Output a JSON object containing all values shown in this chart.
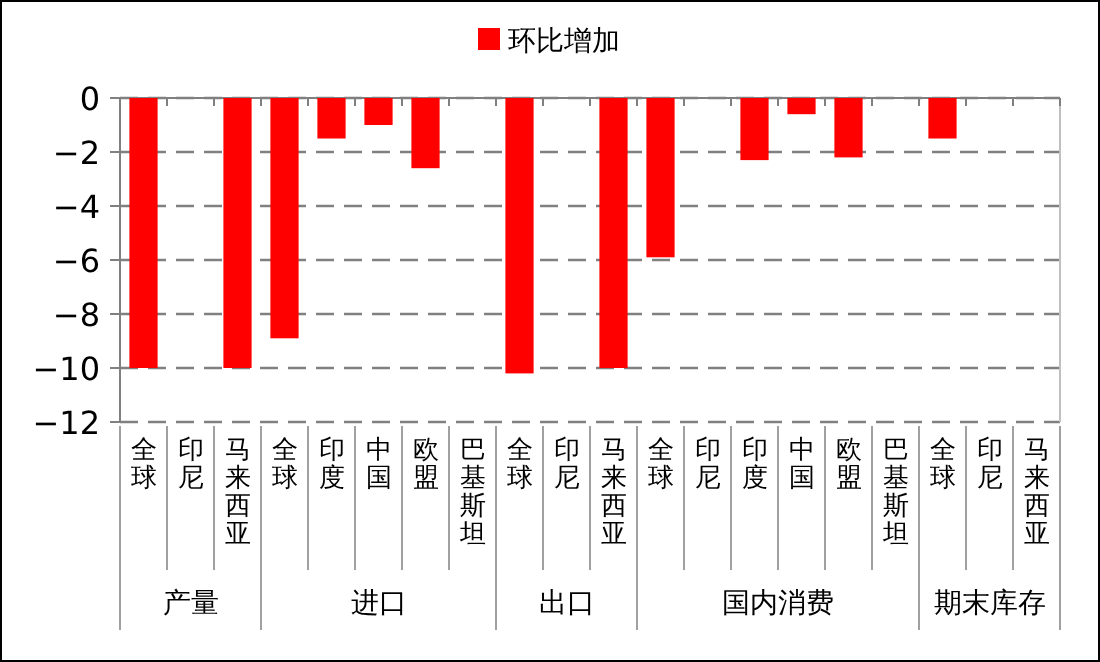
{
  "chart_data": {
    "type": "bar",
    "categories": [
      "全球",
      "印尼",
      "马来西亚",
      "全球",
      "印度",
      "中国",
      "欧盟",
      "巴基斯坦",
      "全球",
      "印尼",
      "马来西亚",
      "全球",
      "印尼",
      "印度",
      "中国",
      "欧盟",
      "巴基斯坦",
      "全球",
      "印尼",
      "马来西亚"
    ],
    "series": [
      {
        "name": "环比增加",
        "color": "#ff0000",
        "values": [
          -10,
          0,
          -10,
          -8.9,
          -1.5,
          -1.0,
          -2.6,
          0,
          -10.2,
          0,
          -10,
          -5.9,
          0,
          -2.3,
          -0.6,
          -2.2,
          0,
          -1.5,
          0,
          0
        ]
      }
    ],
    "annotations": [
      "产量",
      "进口",
      "出口",
      "国内消费",
      "期末库存"
    ],
    "ylim": [
      -12,
      0
    ],
    "yticks": [
      -12,
      -10,
      -8,
      -6,
      -4,
      -2,
      0
    ],
    "grid": "y",
    "legend": "top"
  }
}
